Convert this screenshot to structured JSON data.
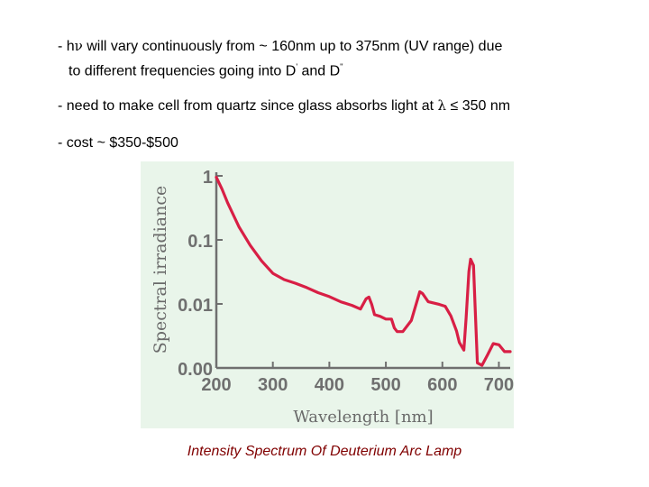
{
  "bullets": {
    "b1": {
      "line1_prefix": "- h",
      "line1_symbol": "ν",
      "line1_rest": " will vary continuously from ~ 160nm up to 375nm (UV range) due",
      "line2_prefix": "to different frequencies going into D",
      "line2_sup1": "'",
      "line2_mid": " and D",
      "line2_sup2": "''"
    },
    "b2": {
      "prefix": "- need to make cell from quartz since glass absorbs light at ",
      "symbol": "λ",
      "rest": " ≤ 350 nm"
    },
    "b3": {
      "text": "- cost ~ $350-$500"
    }
  },
  "caption": "Intensity Spectrum Of Deuterium Arc Lamp",
  "chart_data": {
    "type": "line",
    "title": "",
    "xlabel": "Wavelength [nm]",
    "ylabel": "Spectral irradiance",
    "xlim": [
      200,
      720
    ],
    "ylim_log": [
      0.001,
      1
    ],
    "x_ticks": [
      "200",
      "300",
      "400",
      "500",
      "600",
      "700"
    ],
    "y_ticks": [
      "1",
      "0.1",
      "0.01",
      "0.00"
    ],
    "y_tick_values": [
      1,
      0.1,
      0.01,
      0.001
    ],
    "line_color": "#d81f45",
    "background": "#e9f5ea",
    "series": [
      {
        "name": "Deuterium arc lamp",
        "x": [
          200,
          210,
          220,
          240,
          260,
          280,
          300,
          320,
          340,
          360,
          380,
          400,
          420,
          440,
          455,
          465,
          470,
          475,
          480,
          490,
          500,
          510,
          515,
          520,
          530,
          545,
          555,
          560,
          565,
          575,
          585,
          595,
          605,
          615,
          625,
          630,
          638,
          642,
          647,
          650,
          655,
          658,
          662,
          670,
          680,
          690,
          700,
          710,
          720
        ],
        "y": [
          0.95,
          0.62,
          0.38,
          0.16,
          0.082,
          0.047,
          0.03,
          0.024,
          0.021,
          0.018,
          0.015,
          0.013,
          0.0108,
          0.0095,
          0.0083,
          0.012,
          0.0128,
          0.0098,
          0.0068,
          0.0064,
          0.0058,
          0.0058,
          0.0042,
          0.0037,
          0.0037,
          0.0055,
          0.011,
          0.0155,
          0.0145,
          0.0108,
          0.0103,
          0.0098,
          0.0092,
          0.0065,
          0.0038,
          0.0025,
          0.0019,
          0.006,
          0.032,
          0.05,
          0.04,
          0.009,
          0.0012,
          0.0011,
          0.0016,
          0.0024,
          0.0023,
          0.0018,
          0.0018
        ]
      }
    ]
  }
}
